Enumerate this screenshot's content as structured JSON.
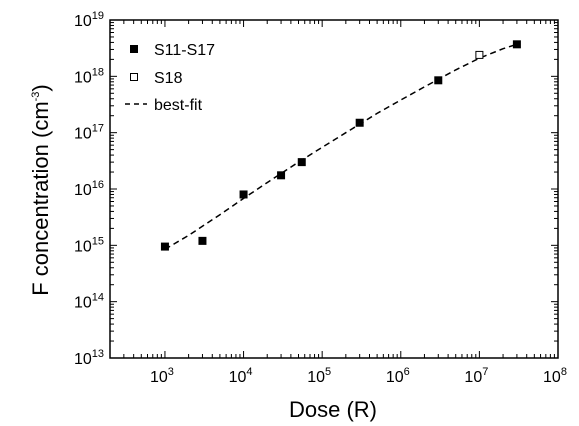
{
  "chart_data": {
    "type": "scatter",
    "xlabel": "Dose (R)",
    "ylabel_main": "F concentration (cm",
    "ylabel_sup": "-3",
    "ylabel_close": ")",
    "xscale": "log",
    "yscale": "log",
    "xlim": [
      200,
      100000000
    ],
    "ylim": [
      10000000000000,
      10000000000000000000
    ],
    "grid": false,
    "legend_position": "top-left",
    "x_tick_labels": [
      {
        "base": "10",
        "exp": "3",
        "value": 1000
      },
      {
        "base": "10",
        "exp": "4",
        "value": 10000
      },
      {
        "base": "10",
        "exp": "5",
        "value": 100000
      },
      {
        "base": "10",
        "exp": "6",
        "value": 1000000
      },
      {
        "base": "10",
        "exp": "7",
        "value": 10000000
      },
      {
        "base": "10",
        "exp": "8",
        "value": 100000000
      }
    ],
    "y_tick_labels": [
      {
        "base": "10",
        "exp": "13",
        "value": 10000000000000
      },
      {
        "base": "10",
        "exp": "14",
        "value": 100000000000000
      },
      {
        "base": "10",
        "exp": "15",
        "value": 1000000000000000
      },
      {
        "base": "10",
        "exp": "16",
        "value": 10000000000000000
      },
      {
        "base": "10",
        "exp": "17",
        "value": 100000000000000000
      },
      {
        "base": "10",
        "exp": "18",
        "value": 1000000000000000000
      },
      {
        "base": "10",
        "exp": "19",
        "value": 10000000000000000000
      }
    ],
    "series": [
      {
        "name": "S11-S17",
        "marker": "filled-square",
        "color": "#000000",
        "points": [
          {
            "x": 1000,
            "y": 950000000000000.0
          },
          {
            "x": 3000,
            "y": 1200000000000000.0
          },
          {
            "x": 10000,
            "y": 8000000000000000.0
          },
          {
            "x": 30000,
            "y": 1.75e+16
          },
          {
            "x": 55000,
            "y": 3e+16
          },
          {
            "x": 300000,
            "y": 1.5e+17
          },
          {
            "x": 3000000,
            "y": 8.5e+17
          },
          {
            "x": 30000000,
            "y": 3.7e+18
          }
        ]
      },
      {
        "name": "S18",
        "marker": "open-square",
        "color": "#000000",
        "points": [
          {
            "x": 10000000,
            "y": 2.4e+18
          }
        ]
      },
      {
        "name": "best-fit",
        "marker": "dashed-line",
        "color": "#000000",
        "points": [
          {
            "x": 1000,
            "y": 850000000000000.0
          },
          {
            "x": 2000,
            "y": 1500000000000000.0
          },
          {
            "x": 5000,
            "y": 3500000000000000.0
          },
          {
            "x": 10000,
            "y": 6800000000000000.0
          },
          {
            "x": 20000,
            "y": 1.3e+16
          },
          {
            "x": 50000,
            "y": 3e+16
          },
          {
            "x": 100000,
            "y": 5.5e+16
          },
          {
            "x": 200000,
            "y": 1e+17
          },
          {
            "x": 500000,
            "y": 2.2e+17
          },
          {
            "x": 1000000,
            "y": 3.8e+17
          },
          {
            "x": 2000000,
            "y": 6.5e+17
          },
          {
            "x": 5000000,
            "y": 1.3e+18
          },
          {
            "x": 10000000,
            "y": 2.1e+18
          },
          {
            "x": 20000000,
            "y": 3.1e+18
          },
          {
            "x": 30000000,
            "y": 3.7e+18
          }
        ]
      }
    ]
  }
}
